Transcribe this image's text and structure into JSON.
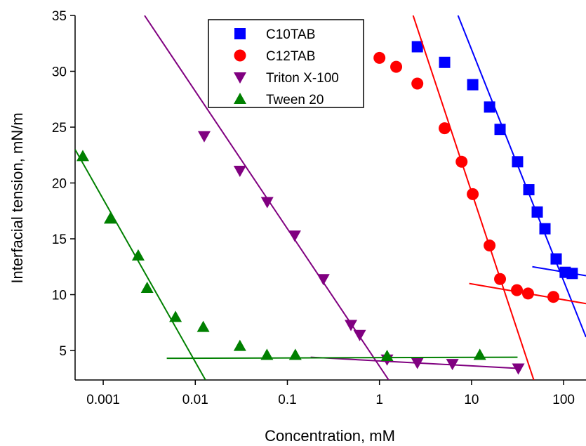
{
  "chart_data": {
    "type": "scatter",
    "x_label": "Concentration, mM",
    "y_label": "Interfacial tension, mN/m",
    "xlog": true,
    "xlim": [
      0.000495,
      175
    ],
    "ylim": [
      2.36,
      35
    ],
    "xticks": [
      0.001,
      0.01,
      0.1,
      1,
      10,
      100
    ],
    "yticks": [
      5,
      10,
      15,
      20,
      25,
      30,
      35
    ],
    "legend": "top",
    "series": [
      {
        "name": "C10TAB",
        "color": "#0000ff",
        "marker": "square",
        "x": [
          2.58,
          5.1,
          10.3,
          15.7,
          20.4,
          31.6,
          41.9,
          51.7,
          62.7,
          83,
          104,
          124
        ],
        "values": [
          32.2,
          30.8,
          28.8,
          26.8,
          24.8,
          21.9,
          19.4,
          17.4,
          15.9,
          13.2,
          12.0,
          11.9
        ],
        "fits": [
          {
            "x": [
              7.13,
              175
            ],
            "values": [
              35,
              6.2
            ]
          },
          {
            "x": [
              45.7,
              175
            ],
            "values": [
              12.5,
              11.7
            ]
          }
        ]
      },
      {
        "name": "C12TAB",
        "color": "#ff0000",
        "marker": "circle",
        "x": [
          1.0,
          1.52,
          2.58,
          5.1,
          7.8,
          10.3,
          15.7,
          20.4,
          31.1,
          41.1,
          77.4
        ],
        "values": [
          31.2,
          30.4,
          28.9,
          24.9,
          21.9,
          19.0,
          14.4,
          11.4,
          10.4,
          10.1,
          9.8
        ],
        "fits": [
          {
            "x": [
              2.32,
              47.4
            ],
            "values": [
              35,
              2.36
            ]
          },
          {
            "x": [
              9.44,
              175
            ],
            "values": [
              11.0,
              9.2
            ]
          }
        ]
      },
      {
        "name": "Triton X-100",
        "color": "#800080",
        "marker": "triangle-down",
        "x": [
          0.0125,
          0.0305,
          0.0604,
          0.12,
          0.246,
          0.49,
          0.61,
          1.21,
          2.58,
          6.2,
          32.2
        ],
        "values": [
          24.2,
          21.1,
          18.3,
          15.3,
          11.4,
          7.3,
          6.4,
          4.2,
          3.9,
          3.8,
          3.4
        ],
        "fits": [
          {
            "x": [
              0.00281,
              1.26
            ],
            "values": [
              35,
              2.36
            ]
          },
          {
            "x": [
              0.179,
              32
            ],
            "values": [
              4.4,
              3.4
            ]
          }
        ]
      },
      {
        "name": "Tween 20",
        "color": "#008000",
        "marker": "triangle-up",
        "x": [
          0.0006,
          0.00119,
          0.0024,
          0.003,
          0.0061,
          0.0122,
          0.0305,
          0.06,
          0.122,
          1.21,
          12.3
        ],
        "values": [
          22.4,
          16.8,
          13.5,
          10.6,
          8.0,
          7.1,
          5.4,
          4.6,
          4.6,
          4.5,
          4.6
        ],
        "fits": [
          {
            "x": [
              0.000495,
              0.0129
            ],
            "values": [
              23.0,
              2.36
            ]
          },
          {
            "x": [
              0.0049,
              31.6
            ],
            "values": [
              4.3,
              4.4
            ]
          }
        ]
      }
    ]
  }
}
